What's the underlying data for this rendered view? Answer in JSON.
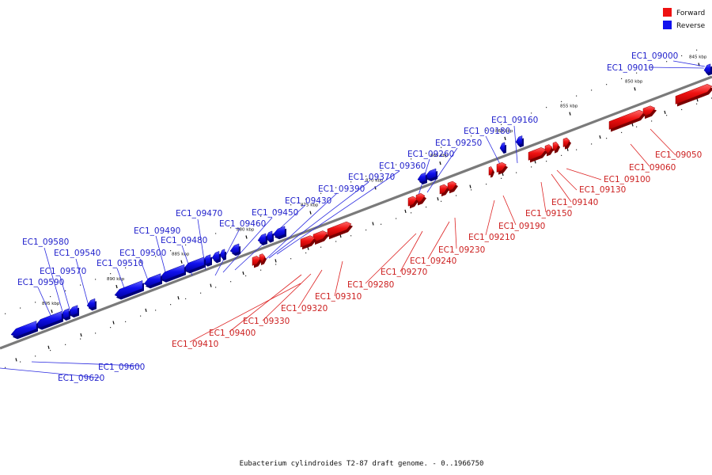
{
  "legend": {
    "forward": {
      "label": "Forward",
      "color": "#ee1111"
    },
    "reverse": {
      "label": "Reverse",
      "color": "#1111ee"
    }
  },
  "caption": "Eubacterium cylindroides T2-87 draft genome. - 0..1966750",
  "ticks": [
    "845 kbp",
    "850 kbp",
    "855 kbp",
    "860 kbp",
    "865 kbp",
    "870 kbp",
    "875 kbp",
    "880 kbp",
    "885 kbp",
    "890 kbp",
    "895 kbp"
  ],
  "genes": [
    {
      "id": "EC1_09000",
      "strand": "reverse"
    },
    {
      "id": "EC1_09010",
      "strand": "reverse"
    },
    {
      "id": "EC1_09050",
      "strand": "forward"
    },
    {
      "id": "EC1_09060",
      "strand": "forward"
    },
    {
      "id": "EC1_09100",
      "strand": "forward"
    },
    {
      "id": "EC1_09130",
      "strand": "forward"
    },
    {
      "id": "EC1_09140",
      "strand": "forward"
    },
    {
      "id": "EC1_09150",
      "strand": "forward"
    },
    {
      "id": "EC1_09160",
      "strand": "reverse"
    },
    {
      "id": "EC1_09180",
      "strand": "reverse"
    },
    {
      "id": "EC1_09190",
      "strand": "forward"
    },
    {
      "id": "EC1_09210",
      "strand": "forward"
    },
    {
      "id": "EC1_09230",
      "strand": "forward"
    },
    {
      "id": "EC1_09240",
      "strand": "forward"
    },
    {
      "id": "EC1_09250",
      "strand": "reverse"
    },
    {
      "id": "EC1_09260",
      "strand": "reverse"
    },
    {
      "id": "EC1_09270",
      "strand": "forward"
    },
    {
      "id": "EC1_09280",
      "strand": "forward"
    },
    {
      "id": "EC1_09310",
      "strand": "forward"
    },
    {
      "id": "EC1_09320",
      "strand": "forward"
    },
    {
      "id": "EC1_09330",
      "strand": "forward"
    },
    {
      "id": "EC1_09360",
      "strand": "reverse"
    },
    {
      "id": "EC1_09370",
      "strand": "reverse"
    },
    {
      "id": "EC1_09390",
      "strand": "reverse"
    },
    {
      "id": "EC1_09400",
      "strand": "forward"
    },
    {
      "id": "EC1_09410",
      "strand": "forward"
    },
    {
      "id": "EC1_09430",
      "strand": "reverse"
    },
    {
      "id": "EC1_09450",
      "strand": "reverse"
    },
    {
      "id": "EC1_09460",
      "strand": "reverse"
    },
    {
      "id": "EC1_09470",
      "strand": "reverse"
    },
    {
      "id": "EC1_09480",
      "strand": "reverse"
    },
    {
      "id": "EC1_09490",
      "strand": "reverse"
    },
    {
      "id": "EC1_09500",
      "strand": "reverse"
    },
    {
      "id": "EC1_09510",
      "strand": "reverse"
    },
    {
      "id": "EC1_09540",
      "strand": "reverse"
    },
    {
      "id": "EC1_09570",
      "strand": "reverse"
    },
    {
      "id": "EC1_09580",
      "strand": "reverse"
    },
    {
      "id": "EC1_09590",
      "strand": "reverse"
    },
    {
      "id": "EC1_09600",
      "strand": "reverse"
    },
    {
      "id": "EC1_09620",
      "strand": "reverse"
    }
  ]
}
